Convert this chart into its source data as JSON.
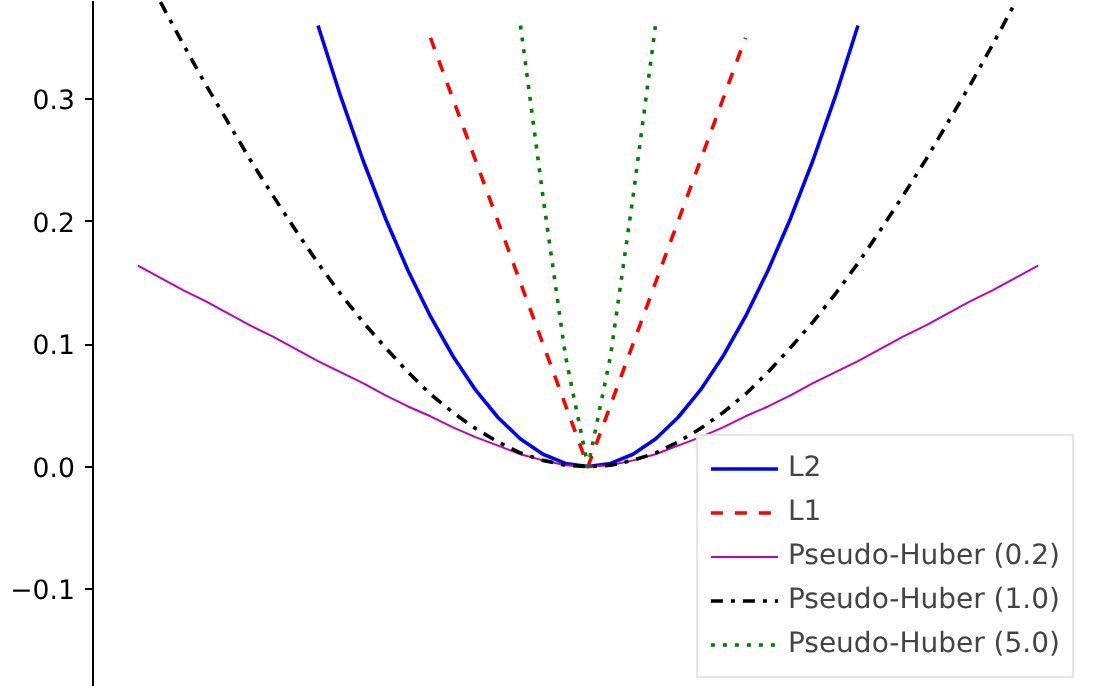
{
  "chart_data": {
    "type": "line",
    "categories": [
      null,
      null,
      null,
      null,
      null,
      null,
      null,
      null,
      null,
      null,
      null,
      null,
      null,
      null,
      null,
      null,
      null,
      null,
      null,
      null,
      null,
      null,
      null,
      null,
      null,
      null,
      null,
      null,
      null,
      null,
      null,
      null,
      null,
      null,
      null,
      null,
      null,
      null,
      null,
      null,
      null
    ],
    "ylim": [
      -0.18,
      0.38
    ],
    "yticks": [
      {
        "value": -0.1,
        "label": "−0.1"
      },
      {
        "value": 0,
        "label": "0.0"
      },
      {
        "value": 0.1,
        "label": "0.1"
      },
      {
        "value": 0.2,
        "label": "0.2"
      },
      {
        "value": 0.3,
        "label": "0.3"
      }
    ],
    "tick_labels": "y",
    "grid": false,
    "legend": "bottom right",
    "series": [
      {
        "name": "L2",
        "color": "#0000ff",
        "line_style": "solid",
        "values": [
          null,
          null,
          null,
          null,
          null,
          null,
          null,
          null,
          0.36,
          0.3025,
          0.25,
          0.2025,
          0.16,
          0.1225,
          0.09,
          0.0625,
          0.04,
          0.0225,
          0.01,
          0.0025,
          0,
          0.0025,
          0.01,
          0.0225,
          0.04,
          0.0625,
          0.09,
          0.1225,
          0.16,
          0.2025,
          0.25,
          0.3025,
          0.36,
          null,
          null,
          null,
          null,
          null,
          null,
          null,
          null
        ]
      },
      {
        "name": "L1",
        "color": "#ff0000",
        "line_style": "dashed",
        "values": [
          null,
          null,
          null,
          null,
          null,
          null,
          null,
          null,
          null,
          null,
          null,
          null,
          null,
          0.35,
          0.3,
          0.25,
          0.2,
          0.15,
          0.1,
          0.05,
          0,
          0.05,
          0.1,
          0.15,
          0.2,
          0.25,
          0.3,
          0.35,
          null,
          null,
          null,
          null,
          null,
          null,
          null,
          null,
          null,
          null,
          null,
          null,
          null
        ]
      },
      {
        "name": "Pseudo-Huber (0.2)",
        "color": "#bf00bf",
        "line_style": "solid",
        "values": [
          0.164,
          0.154,
          0.144,
          0.135,
          0.125,
          0.115,
          0.106,
          0.096,
          0.086,
          0.077,
          0.068,
          0.058,
          0.049,
          0.041,
          0.032,
          0.024,
          0.017,
          0.01,
          0.005,
          0.001,
          0,
          0.001,
          0.005,
          0.01,
          0.017,
          0.024,
          0.032,
          0.041,
          0.049,
          0.058,
          0.068,
          0.077,
          0.086,
          0.096,
          0.106,
          0.115,
          0.125,
          0.135,
          0.144,
          0.154,
          0.164
        ]
      },
      {
        "name": "Pseudo-Huber (1.0)",
        "color": "#000000",
        "line_style": "dashdot",
        "values": [
          null,
          0.379,
          0.345,
          0.312,
          0.281,
          0.25,
          0.221,
          0.193,
          0.166,
          0.141,
          0.118,
          0.097,
          0.077,
          0.059,
          0.044,
          0.031,
          0.02,
          0.011,
          0.005,
          0.001,
          0,
          0.001,
          0.005,
          0.011,
          0.02,
          0.031,
          0.044,
          0.059,
          0.077,
          0.097,
          0.118,
          0.141,
          0.166,
          0.193,
          0.221,
          0.25,
          0.281,
          0.312,
          0.345,
          0.379,
          null
        ]
      },
      {
        "name": "Pseudo-Huber (5.0)",
        "color": "#008000",
        "line_style": "dotted",
        "values": [
          null,
          null,
          null,
          null,
          null,
          null,
          null,
          null,
          null,
          null,
          null,
          null,
          null,
          null,
          null,
          null,
          null,
          0.36,
          0.22,
          0.09,
          0,
          0.09,
          0.22,
          0.36,
          null,
          null,
          null,
          null,
          null,
          null,
          null,
          null,
          null,
          null,
          null,
          null,
          null,
          null,
          null,
          null,
          null
        ]
      }
    ]
  }
}
